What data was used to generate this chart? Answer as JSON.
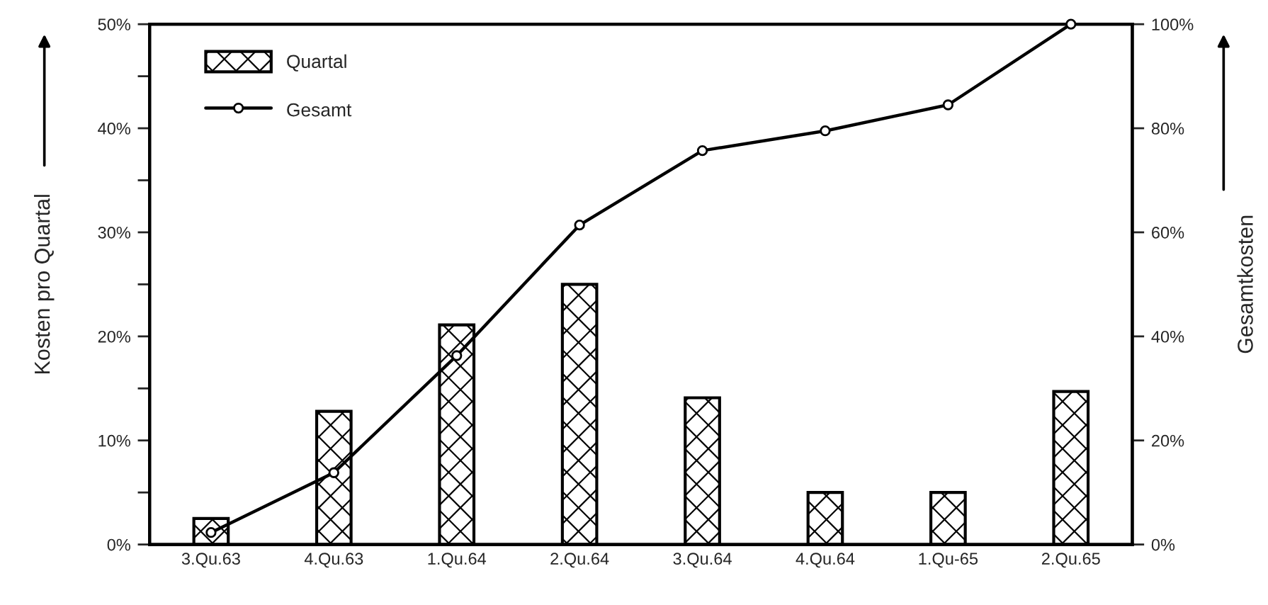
{
  "chart_data": {
    "type": "bar",
    "xlabel": null,
    "ylabel": "Kosten pro Quartal",
    "y2label": "Gesamtkosten",
    "categories": [
      "3.Qu.63",
      "4.Qu.63",
      "1.Qu.64",
      "2.Qu.64",
      "3.Qu.64",
      "4.Qu.64",
      "1.Qu-65",
      "2.Qu.65"
    ],
    "series": [
      {
        "name": "Quartal",
        "color": "#000000",
        "values": [
          2.5,
          12.8,
          21.1,
          25.0,
          14.1,
          5.0,
          5.0,
          14.7
        ]
      },
      {
        "name": "Gesamt",
        "type": "line",
        "axis": "y2",
        "color": "#000000",
        "marker": "circle",
        "line_style": "solid",
        "values": [
          2.3,
          13.8,
          36.3,
          61.4,
          75.7,
          79.5,
          84.5,
          100
        ]
      }
    ],
    "ylim": [
      0,
      50
    ],
    "yticks": [
      {
        "value": 0,
        "label": "0%"
      },
      {
        "value": 5,
        "label": null
      },
      {
        "value": 10,
        "label": "10%"
      },
      {
        "value": 15,
        "label": null
      },
      {
        "value": 20,
        "label": "20%"
      },
      {
        "value": 25,
        "label": null
      },
      {
        "value": 30,
        "label": "30%"
      },
      {
        "value": 35,
        "label": null
      },
      {
        "value": 40,
        "label": "40%"
      },
      {
        "value": 45,
        "label": null
      },
      {
        "value": 50,
        "label": "50%"
      }
    ],
    "y2lim": [
      0,
      100
    ],
    "y2ticks": [
      {
        "value": 0,
        "label": "0%"
      },
      {
        "value": 20,
        "label": "20%"
      },
      {
        "value": 40,
        "label": "40%"
      },
      {
        "value": 60,
        "label": "60%"
      },
      {
        "value": 80,
        "label": "80%"
      },
      {
        "value": 100,
        "label": "100%"
      }
    ],
    "grid": false,
    "legend": "top left"
  }
}
